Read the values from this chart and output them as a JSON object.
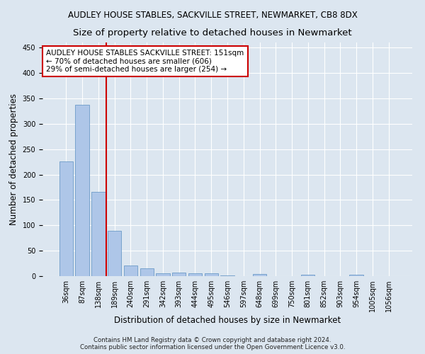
{
  "title": "AUDLEY HOUSE STABLES, SACKVILLE STREET, NEWMARKET, CB8 8DX",
  "subtitle": "Size of property relative to detached houses in Newmarket",
  "xlabel": "Distribution of detached houses by size in Newmarket",
  "ylabel": "Number of detached properties",
  "categories": [
    "36sqm",
    "87sqm",
    "138sqm",
    "189sqm",
    "240sqm",
    "291sqm",
    "342sqm",
    "393sqm",
    "444sqm",
    "495sqm",
    "546sqm",
    "597sqm",
    "648sqm",
    "699sqm",
    "750sqm",
    "801sqm",
    "852sqm",
    "903sqm",
    "954sqm",
    "1005sqm",
    "1056sqm"
  ],
  "values": [
    226,
    337,
    166,
    89,
    21,
    16,
    6,
    7,
    5,
    5,
    1,
    0,
    4,
    0,
    0,
    3,
    0,
    0,
    3,
    0,
    0
  ],
  "bar_color": "#aec6e8",
  "bar_edge_color": "#5a8fc0",
  "vline_x": 2.5,
  "vline_color": "#cc0000",
  "annotation_text": "AUDLEY HOUSE STABLES SACKVILLE STREET: 151sqm\n← 70% of detached houses are smaller (606)\n29% of semi-detached houses are larger (254) →",
  "annotation_box_color": "#ffffff",
  "annotation_box_edge": "#cc0000",
  "ylim": [
    0,
    460
  ],
  "yticks": [
    0,
    50,
    100,
    150,
    200,
    250,
    300,
    350,
    400,
    450
  ],
  "background_color": "#dce6f0",
  "plot_background": "#dce6f0",
  "footer_text": "Contains HM Land Registry data © Crown copyright and database right 2024.\nContains public sector information licensed under the Open Government Licence v3.0.",
  "title_fontsize": 8.5,
  "subtitle_fontsize": 9.5,
  "axis_label_fontsize": 8.5,
  "tick_fontsize": 7,
  "annotation_fontsize": 7.5
}
